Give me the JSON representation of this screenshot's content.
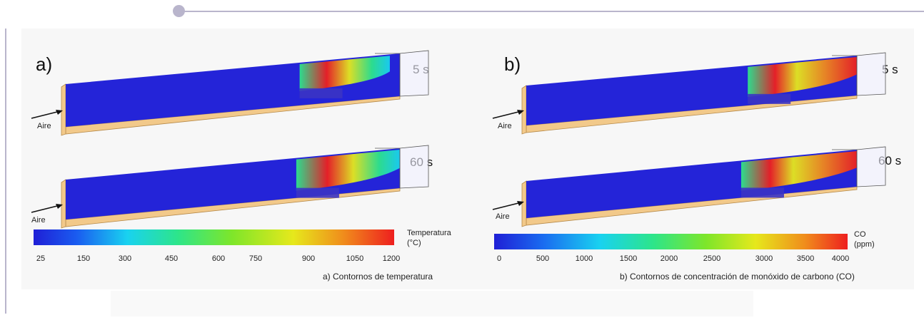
{
  "panels": [
    {
      "label": "a)",
      "times": [
        "5 s",
        "60 s"
      ],
      "inlet": "Aire",
      "colorbar": {
        "unit_line1": "Temperatura",
        "unit_line2": "(°C)",
        "ticks": [
          "25",
          "150",
          "300",
          "450",
          "600",
          "750",
          "900",
          "1050",
          "1200"
        ],
        "colors": [
          "#1f1fd6",
          "#19d2f0",
          "#2de58a",
          "#e6e81c",
          "#ee1f1f"
        ]
      },
      "caption": "a) Contornos de temperatura"
    },
    {
      "label": "b)",
      "times": [
        "5 s",
        "60 s"
      ],
      "inlet": "Aire",
      "colorbar": {
        "unit_line1": "CO",
        "unit_line2": "(ppm)",
        "ticks": [
          "0",
          "500",
          "1000",
          "1500",
          "2000",
          "2500",
          "3000",
          "3500",
          "4000"
        ],
        "colors": [
          "#1f1fd6",
          "#19d2f0",
          "#2de58a",
          "#e6e81c",
          "#ee1f1f"
        ]
      },
      "caption": "b) Contornos de concentración de monóxido de carbono (CO)"
    }
  ]
}
